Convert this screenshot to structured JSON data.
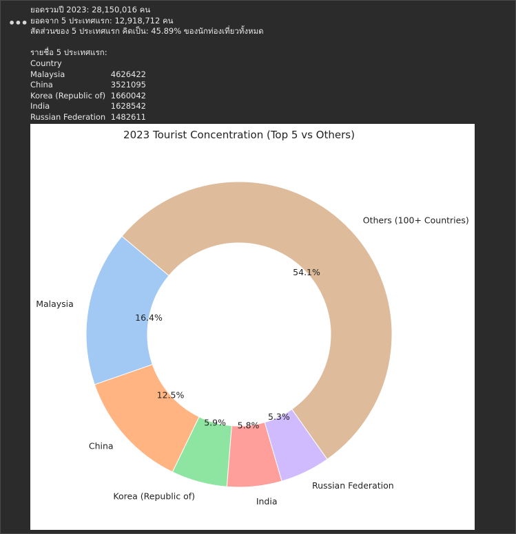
{
  "output": {
    "summary_lines": [
      "ยอดรวมปี 2023: 28,150,016 คน",
      "ยอดจาก 5 ประเทศแรก: 12,918,712 คน",
      "สัดส่วนของ 5 ประเทศแรก คิดเป็น: 45.89% ของนักท่องเที่ยวทั้งหมด"
    ],
    "list_heading": "รายชื่อ 5 ประเทศแรก:",
    "table_header": "Country",
    "table_rows": [
      {
        "country": "Malaysia",
        "value": "4626422"
      },
      {
        "country": "China",
        "value": "3521095"
      },
      {
        "country": "Korea (Republic of)",
        "value": "1660042"
      },
      {
        "country": "India",
        "value": "1628542"
      },
      {
        "country": "Russian Federation",
        "value": "1482611"
      }
    ]
  },
  "chart_data": {
    "type": "pie",
    "style": "donut",
    "title": "2023 Tourist Concentration (Top 5 vs Others)",
    "labels": [
      "Malaysia",
      "China",
      "Korea (Republic of)",
      "India",
      "Russian Federation",
      "Others (100+ Countries)"
    ],
    "values": [
      4626422,
      3521095,
      1660042,
      1628542,
      1482611,
      15231304
    ],
    "percent_labels": [
      "16.4%",
      "12.5%",
      "5.9%",
      "5.8%",
      "5.3%",
      "54.1%"
    ],
    "colors": [
      "#a1c9f4",
      "#ffb482",
      "#8de5a1",
      "#ff9f9b",
      "#d0bbff",
      "#debb9b"
    ],
    "start_angle_deg": 140,
    "direction": "counterclockwise"
  }
}
